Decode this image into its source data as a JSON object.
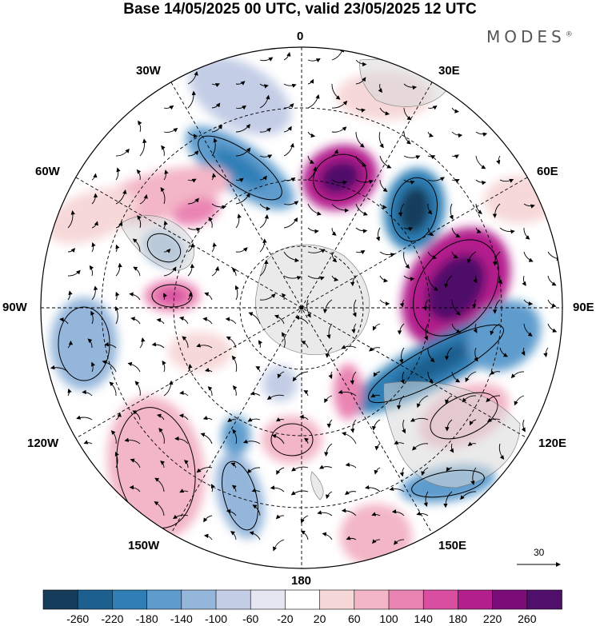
{
  "title": "Base 14/05/2025 00 UTC, valid 23/05/2025 12 UTC",
  "brand": "MODES",
  "brand_mark": "®",
  "longitude_labels": {
    "n": "0",
    "ne": "30E",
    "e1": "60E",
    "e2": "90E",
    "e3": "120E",
    "se": "150E",
    "s": "180",
    "sw": "150W",
    "w3": "120W",
    "w2": "90W",
    "w1": "60W",
    "nw": "30W"
  },
  "colorbar": {
    "ticks": [
      "-260",
      "-220",
      "-180",
      "-140",
      "-100",
      "-60",
      "-20",
      "20",
      "60",
      "100",
      "140",
      "180",
      "220",
      "260"
    ],
    "colors": [
      "#163c5c",
      "#1d5f8e",
      "#2f7fb6",
      "#5f9cce",
      "#94b6db",
      "#c3cde6",
      "#e6e6f2",
      "#ffffff",
      "#f7d8d8",
      "#f3b6c6",
      "#ea84b2",
      "#d94ea0",
      "#b31f8c",
      "#7b0d79",
      "#4f0f6a"
    ]
  },
  "vector_reference": {
    "label": "30"
  }
}
